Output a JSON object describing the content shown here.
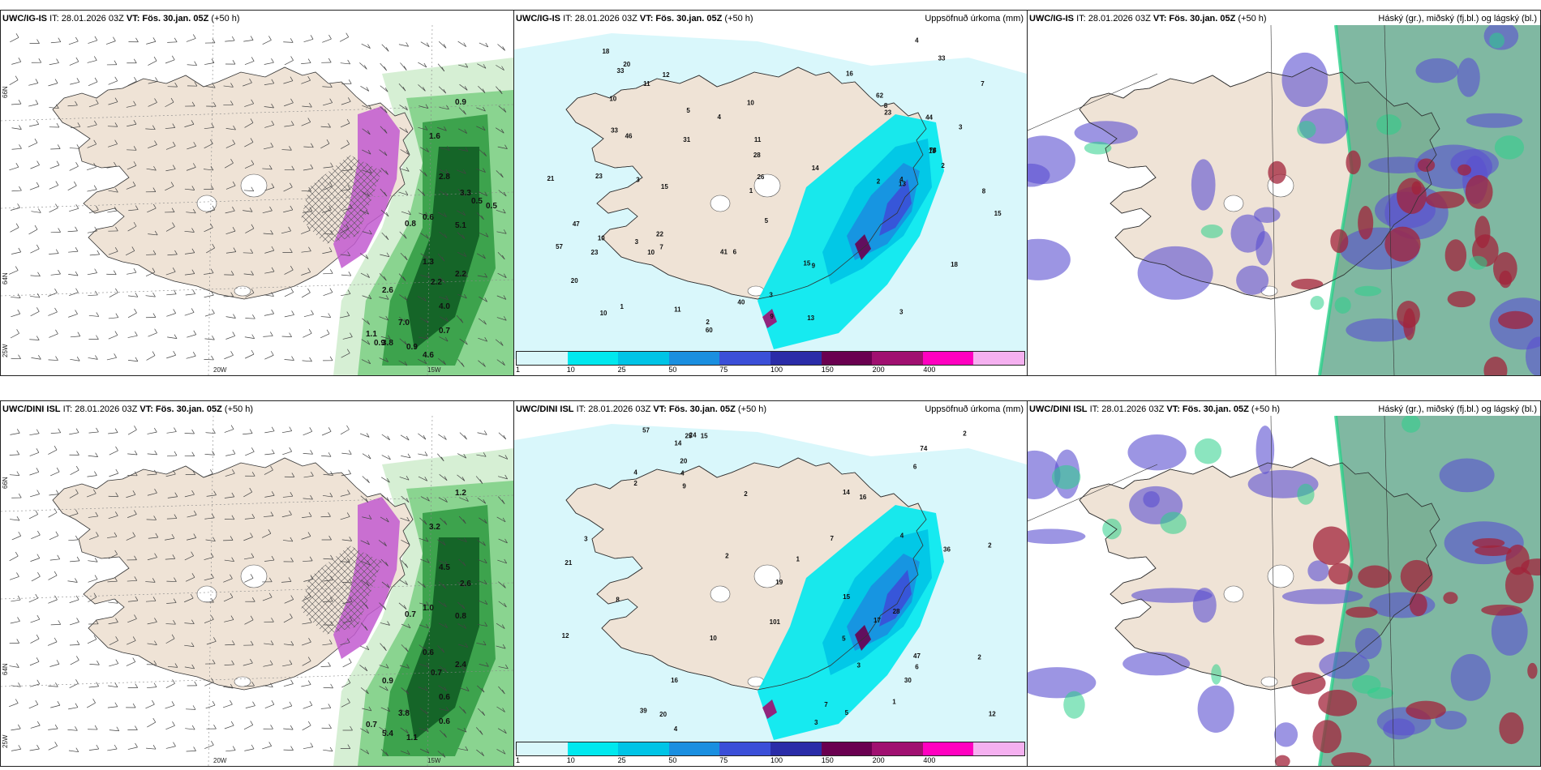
{
  "panels": [
    {
      "id": "p1",
      "model_bold": "UWC/IG-IS",
      "it": "IT: 28.01.2026 03Z",
      "vt_label": "VT:",
      "vt_bold": "Fös. 30.jan. 05Z",
      "lead": "(+50 h)",
      "right": "",
      "type": "wind",
      "lon_labels": [
        "20W",
        "15W"
      ],
      "lat_labels": [
        "66N",
        "64N",
        "25W"
      ],
      "values": [
        "0.9",
        "1.6",
        "2.8",
        "3.3",
        "5.1",
        "0.6",
        "0.8",
        "1.3",
        "2.2",
        "4.0",
        "2.6",
        "7.0",
        "3.8",
        "0.9",
        "2.2",
        "0.7",
        "1.1",
        "0.9",
        "4.6",
        "0.5",
        "0.5"
      ]
    },
    {
      "id": "p2",
      "model_bold": "UWC/IG-IS",
      "it": "IT: 28.01.2026 03Z",
      "vt_label": "VT:",
      "vt_bold": "Fös. 30.jan. 05Z",
      "lead": "(+50 h)",
      "right": "Uppsöfnuð úrkoma (mm)",
      "type": "precip",
      "legend": [
        "1",
        "10",
        "25",
        "50",
        "75",
        "100",
        "150",
        "200",
        "400"
      ],
      "values": [
        "2",
        "3",
        "4",
        "5",
        "3",
        "4",
        "1",
        "3",
        "6",
        "8",
        "10",
        "11",
        "2",
        "3",
        "10",
        "7",
        "9",
        "11",
        "23",
        "14",
        "15",
        "10",
        "22",
        "13",
        "41",
        "18",
        "40",
        "46",
        "33",
        "44",
        "78",
        "9",
        "60",
        "62",
        "10",
        "31",
        "33",
        "47",
        "57",
        "26",
        "16",
        "18",
        "15",
        "15",
        "23",
        "20",
        "20",
        "18",
        "21",
        "8",
        "7",
        "1",
        "5",
        "4",
        "2",
        "3",
        "33",
        "28",
        "23",
        "13",
        "12",
        "11",
        "10"
      ]
    },
    {
      "id": "p3",
      "model_bold": "UWC/IG-IS",
      "it": "IT: 28.01.2026 03Z",
      "vt_label": "VT:",
      "vt_bold": "Fös. 30.jan. 05Z",
      "lead": "(+50 h)",
      "right": "Háský (gr.), miðský (fj.bl.) og lágský (bl.)",
      "type": "cloud"
    },
    {
      "id": "p4",
      "model_bold": "UWC/DINI ISL",
      "it": "IT: 28.01.2026 03Z",
      "vt_label": "VT:",
      "vt_bold": "Fös. 30.jan. 05Z",
      "lead": "(+50 h)",
      "right": "",
      "type": "wind",
      "lon_labels": [
        "20W",
        "15W"
      ],
      "lat_labels": [
        "66N",
        "64N",
        "25W"
      ],
      "values": [
        "1.2",
        "3.2",
        "4.5",
        "2.6",
        "0.8",
        "1.0",
        "0.7",
        "0.6",
        "0.7",
        "0.6",
        "0.9",
        "3.8",
        "5.4",
        "1.1",
        "2.4",
        "0.6",
        "0.7"
      ]
    },
    {
      "id": "p5",
      "model_bold": "UWC/DINI ISL",
      "it": "IT: 28.01.2026 03Z",
      "vt_label": "VT:",
      "vt_bold": "Fös. 30.jan. 05Z",
      "lead": "(+50 h)",
      "right": "Uppsöfnuð úrkoma (mm)",
      "type": "precip",
      "legend": [
        "1",
        "10",
        "25",
        "50",
        "75",
        "100",
        "150",
        "200",
        "400"
      ],
      "values": [
        "2",
        "1",
        "4",
        "3",
        "2",
        "5",
        "6",
        "4",
        "7",
        "8",
        "10",
        "12",
        "21",
        "28",
        "57",
        "47",
        "74",
        "101",
        "30",
        "36",
        "39",
        "24",
        "20",
        "16",
        "17",
        "14",
        "16",
        "15",
        "25",
        "20",
        "19",
        "14",
        "3",
        "1",
        "5",
        "12",
        "6",
        "15",
        "9",
        "7",
        "2",
        "2",
        "4",
        "2",
        "3",
        "4",
        "2"
      ]
    },
    {
      "id": "p6",
      "model_bold": "UWC/DINI ISL",
      "it": "IT: 28.01.2026 03Z",
      "vt_label": "VT:",
      "vt_bold": "Fös. 30.jan. 05Z",
      "lead": "(+50 h)",
      "right": "Háský (gr.), miðský (fj.bl.) og lágský (bl.)",
      "type": "cloud"
    }
  ],
  "colors": {
    "land": "#efe3d6",
    "sea": "#ffffff",
    "precip_scale": [
      "#d9f7fb",
      "#00e8ee",
      "#00c4e6",
      "#1a8fe0",
      "#3b4fd8",
      "#2a2ca8",
      "#6a0050",
      "#a01070",
      "#ff00c0",
      "#f5b0f0"
    ],
    "wind_green": [
      "#cfeccd",
      "#7dcf84",
      "#2f9a42",
      "#0e5a22"
    ],
    "wind_purple": "#c25ad0",
    "cloud_high": "#4a9a7a",
    "cloud_mid": "#5a4fd0",
    "cloud_low": "#a2233a",
    "cloud_green": "#2bd08a"
  }
}
